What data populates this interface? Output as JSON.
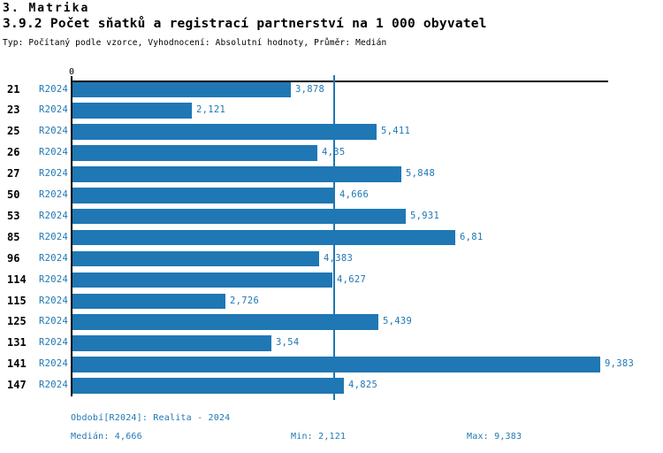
{
  "header": {
    "section_title": "3. Matrika",
    "chart_title": "3.9.2 Počet sňatků a registrací partnerství na 1 000 obyvatel",
    "meta": "Typ: Počítaný podle vzorce, Vyhodnocení: Absolutní hodnoty, Průměr: Medián"
  },
  "colors": {
    "bar": "#1f77b4",
    "value_text": "#1f77b4",
    "period_text": "#1f77b4",
    "footer_text": "#1f77b4",
    "median_line": "#1f77b4",
    "axis": "#000000"
  },
  "chart_data": {
    "type": "bar",
    "orientation": "horizontal",
    "title": "3.9.2 Počet sňatků a registrací partnerství na 1 000 obyvatel",
    "xlabel": "",
    "ylabel": "",
    "xlim": [
      0,
      9.53
    ],
    "grid": false,
    "x_axis_zero_label": "0",
    "categories": [
      "21",
      "23",
      "25",
      "26",
      "27",
      "50",
      "53",
      "85",
      "96",
      "114",
      "115",
      "125",
      "131",
      "141",
      "147"
    ],
    "series": [
      {
        "name": "R2024",
        "values": [
          3.878,
          2.121,
          5.411,
          4.35,
          5.848,
          4.666,
          5.931,
          6.81,
          4.383,
          4.627,
          2.726,
          5.439,
          3.54,
          9.383,
          4.825
        ],
        "value_labels": [
          "3,878",
          "2,121",
          "5,411",
          "4,35",
          "5,848",
          "4,666",
          "5,931",
          "6,81",
          "4,383",
          "4,627",
          "2,726",
          "5,439",
          "3,54",
          "9,383",
          "4,825"
        ]
      }
    ],
    "median": 4.666,
    "median_line": true
  },
  "footer": {
    "period": "Období[R2024]: Realita - 2024",
    "median": "Medián: 4,666",
    "min": "Min: 2,121",
    "max": "Max: 9,383"
  }
}
